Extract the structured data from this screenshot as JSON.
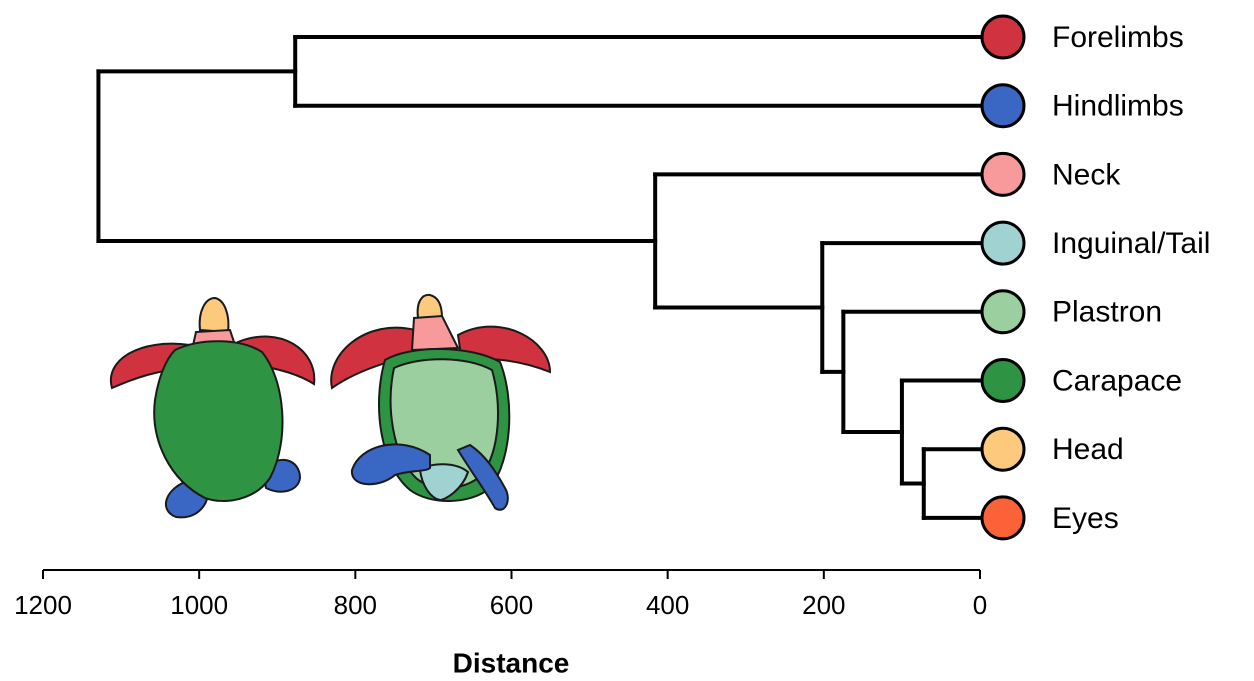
{
  "chart_data": {
    "type": "dendrogram",
    "xlabel": "Distance",
    "xlim": [
      1200,
      0
    ],
    "xticks": [
      1200,
      1000,
      800,
      600,
      400,
      200,
      0
    ],
    "leaves": [
      {
        "name": "Forelimbs",
        "color": "#d0323f"
      },
      {
        "name": "Hindlimbs",
        "color": "#3a66c4"
      },
      {
        "name": "Neck",
        "color": "#f89a9c"
      },
      {
        "name": "Inguinal/Tail",
        "color": "#a0d2d2"
      },
      {
        "name": "Plastron",
        "color": "#9bcf9f"
      },
      {
        "name": "Carapace",
        "color": "#2e9444"
      },
      {
        "name": "Head",
        "color": "#fdc97c"
      },
      {
        "name": "Eyes",
        "color": "#fb6237"
      }
    ],
    "merges": [
      {
        "children": [
          6,
          7
        ],
        "height": 72
      },
      {
        "children": [
          5,
          8
        ],
        "height": 100
      },
      {
        "children": [
          4,
          9
        ],
        "height": 175
      },
      {
        "children": [
          3,
          10
        ],
        "height": 202
      },
      {
        "children": [
          2,
          11
        ],
        "height": 416
      },
      {
        "children": [
          0,
          1
        ],
        "height": 877
      },
      {
        "children": [
          13,
          12
        ],
        "height": 1129
      }
    ]
  }
}
